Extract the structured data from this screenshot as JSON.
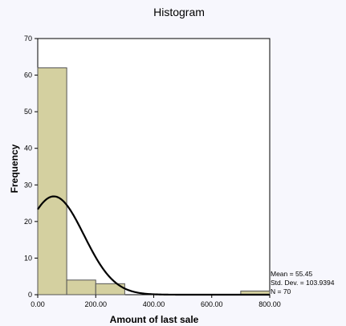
{
  "chart_data": {
    "type": "histogram",
    "title": "Histogram",
    "xlabel": "Amount of last sale",
    "ylabel": "Frequency",
    "xlim": [
      0,
      800
    ],
    "ylim": [
      0,
      70
    ],
    "x_ticks": [
      0,
      200,
      400,
      600,
      800
    ],
    "x_tick_labels": [
      "0.00",
      "200.00",
      "400.00",
      "600.00",
      "800.00"
    ],
    "y_ticks": [
      0,
      10,
      20,
      30,
      40,
      50,
      60,
      70
    ],
    "y_tick_labels": [
      "0",
      "10",
      "20",
      "30",
      "40",
      "50",
      "60",
      "70"
    ],
    "bins": [
      {
        "start": 0,
        "end": 100,
        "count": 62
      },
      {
        "start": 100,
        "end": 200,
        "count": 4
      },
      {
        "start": 200,
        "end": 300,
        "count": 3
      },
      {
        "start": 300,
        "end": 400,
        "count": 0
      },
      {
        "start": 400,
        "end": 500,
        "count": 0
      },
      {
        "start": 500,
        "end": 600,
        "count": 0
      },
      {
        "start": 600,
        "end": 700,
        "count": 0
      },
      {
        "start": 700,
        "end": 800,
        "count": 1
      }
    ],
    "normal_curve": {
      "mean": 55.45,
      "std_dev": 103.9394,
      "n": 70
    },
    "stats_text": [
      "Mean = 55.45",
      "Std. Dev. = 103.9394",
      "N = 70"
    ],
    "colors": {
      "bar_fill": "#d4d0a0",
      "bar_stroke": "#555555",
      "curve": "#000000"
    }
  }
}
